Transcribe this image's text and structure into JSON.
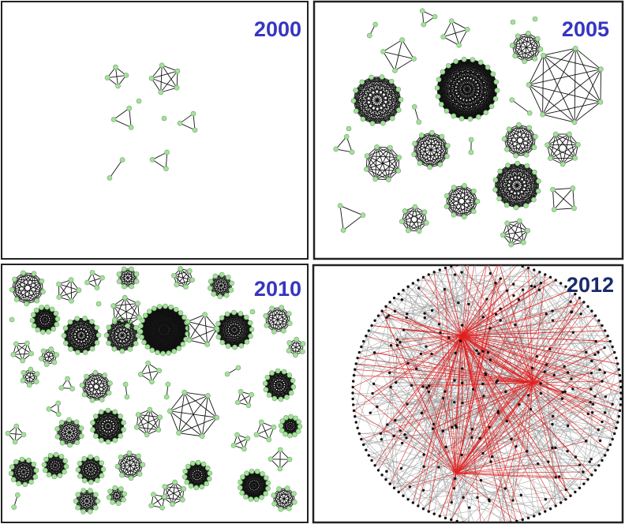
{
  "panels": [
    {
      "label": "2000"
    },
    {
      "label": "2005"
    },
    {
      "label": "2010"
    },
    {
      "label": "2012"
    }
  ]
}
